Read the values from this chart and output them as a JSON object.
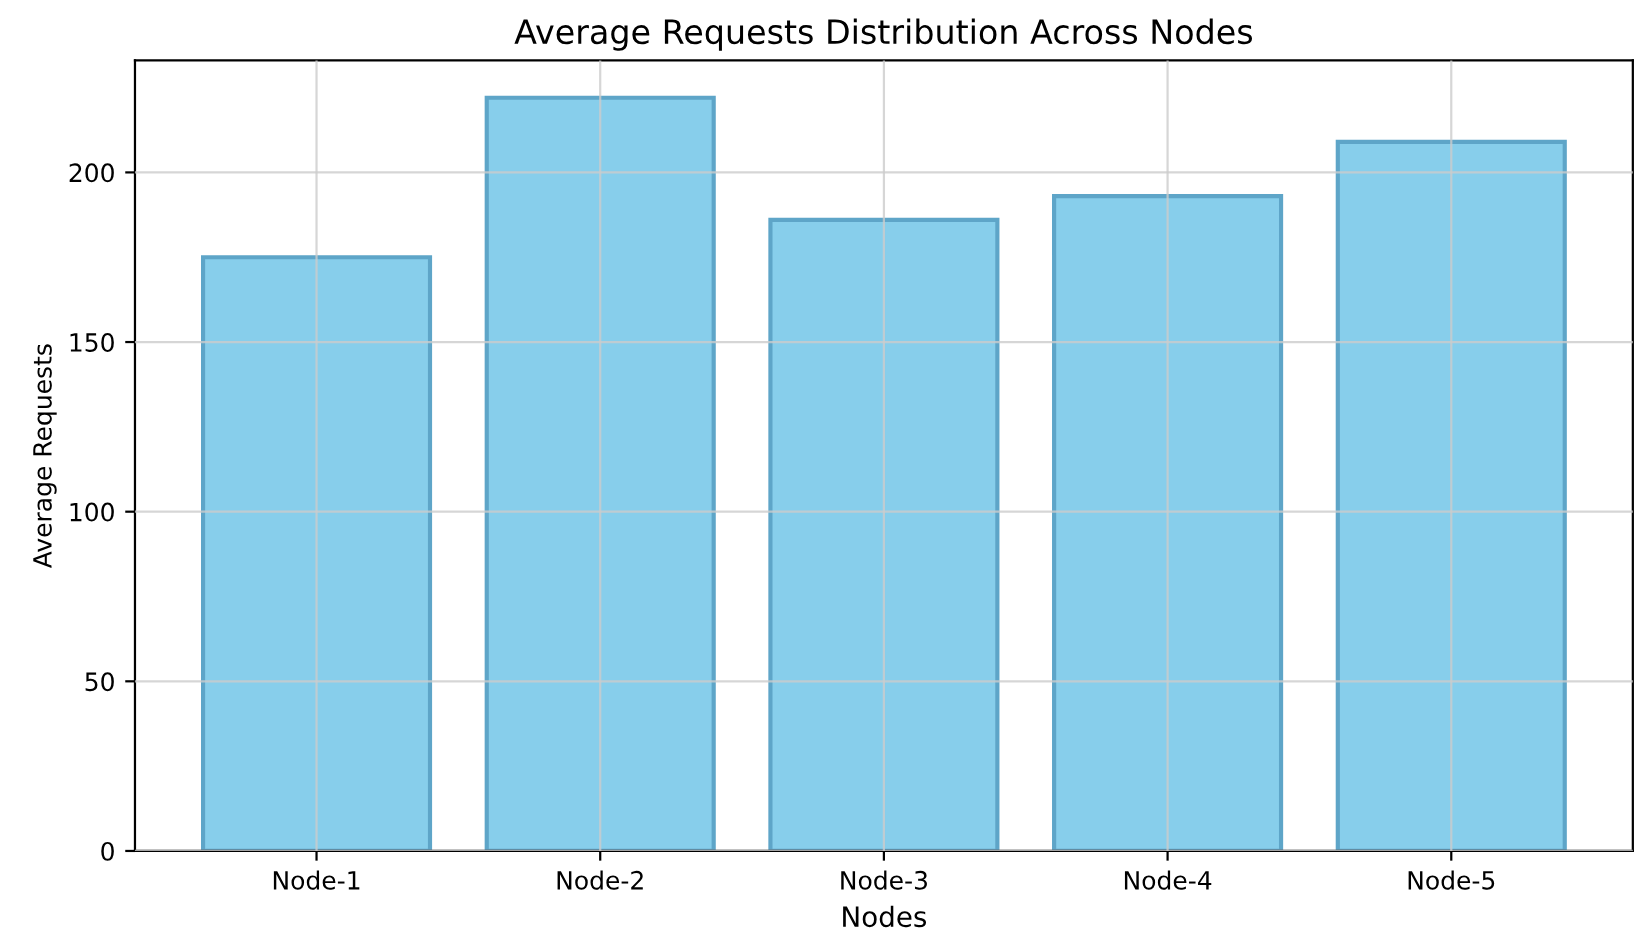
{
  "chart_data": {
    "type": "bar",
    "title": "Average Requests Distribution Across Nodes",
    "xlabel": "Nodes",
    "ylabel": "Average Requests",
    "categories": [
      "Node-1",
      "Node-2",
      "Node-3",
      "Node-4",
      "Node-5"
    ],
    "values": [
      175,
      222,
      186,
      193,
      209
    ],
    "color": "#87ceeb",
    "ylim": [
      0,
      233
    ],
    "yticks": [
      0,
      50,
      100,
      150,
      200
    ],
    "grid": true,
    "legend": false
  }
}
